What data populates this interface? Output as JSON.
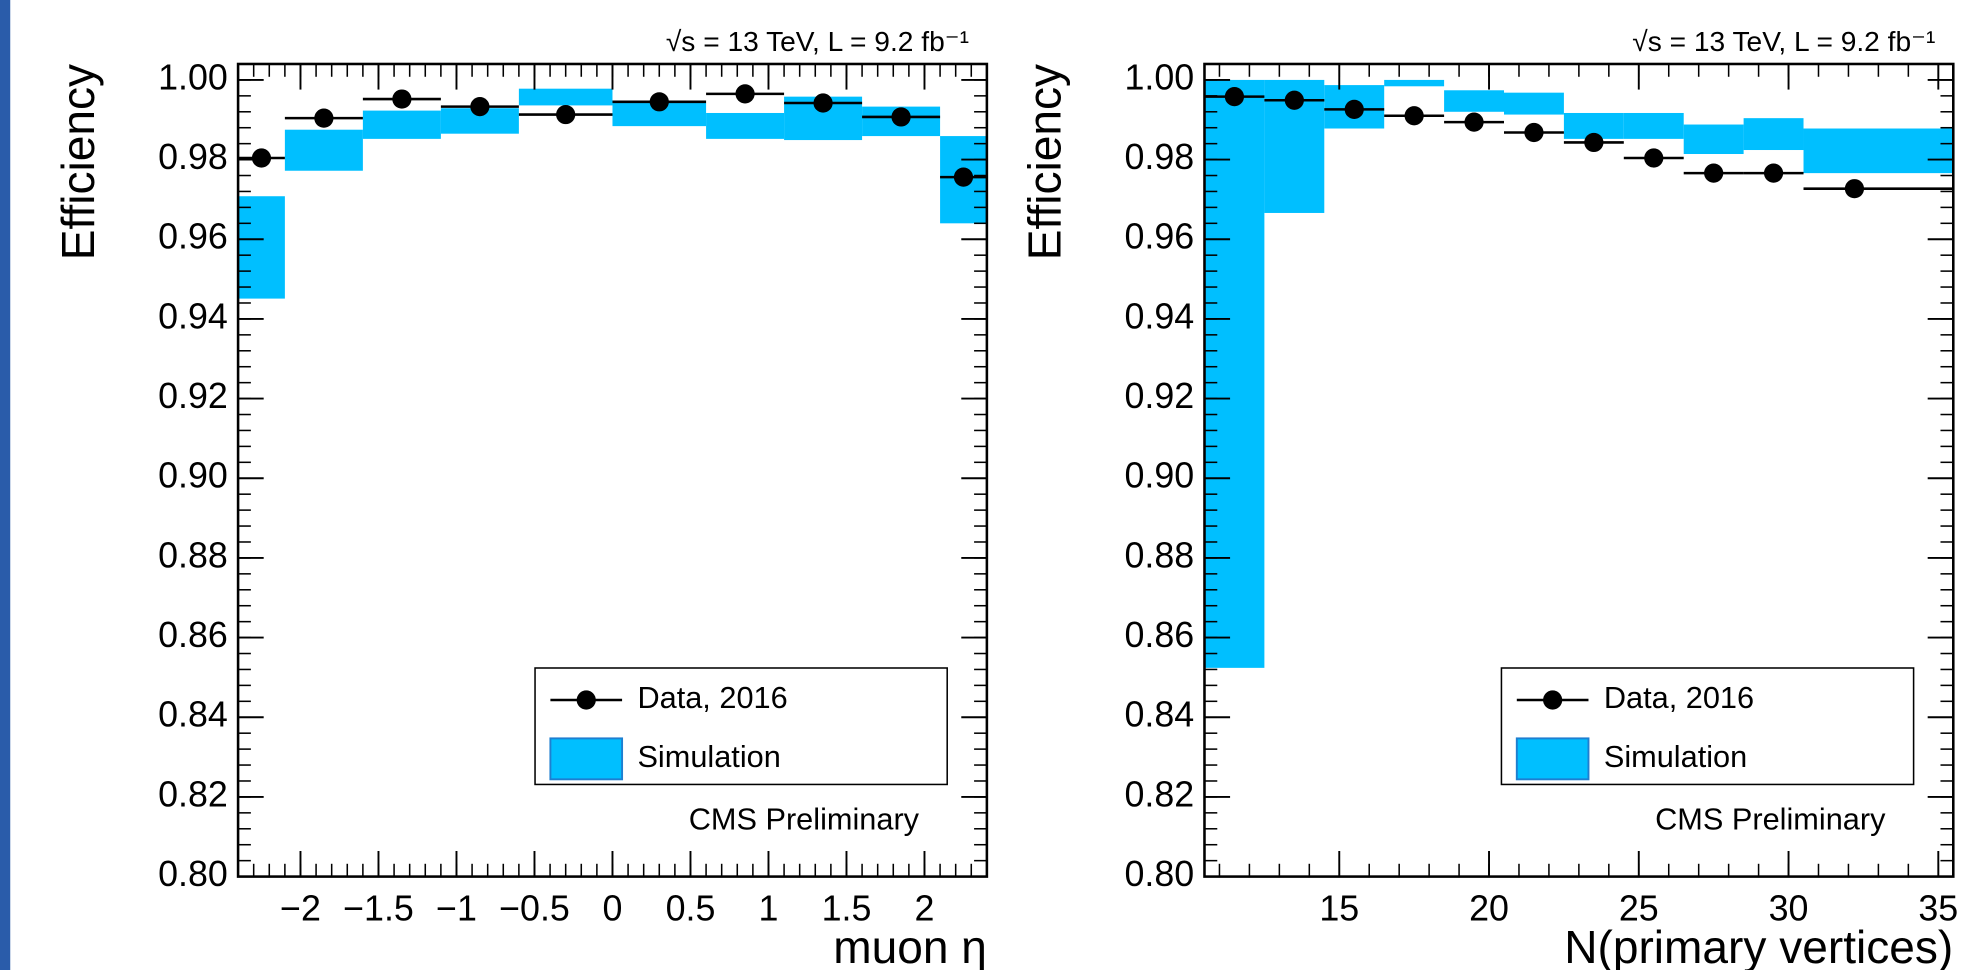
{
  "chart_data": [
    {
      "type": "errorbar",
      "annotation": "√s = 13 TeV, L = 9.2 fb⁻¹",
      "ylabel": "Efficiency",
      "xlabel": "muon η",
      "note": "CMS Preliminary",
      "xlim": [
        -2.4,
        2.4
      ],
      "ylim": [
        0.8,
        1.004
      ],
      "xticks": [
        {
          "value": -2,
          "label": "−2"
        },
        {
          "value": -1.5,
          "label": "−1.5"
        },
        {
          "value": -1,
          "label": "−1"
        },
        {
          "value": -0.5,
          "label": "−0.5"
        },
        0,
        0.5,
        1,
        1.5,
        2
      ],
      "yticks": [
        {
          "value": 0.8,
          "label": "0.80"
        },
        0.82,
        0.84,
        0.86,
        0.88,
        {
          "value": 0.9,
          "label": "0.90"
        },
        0.92,
        0.94,
        0.96,
        0.98,
        {
          "value": 1,
          "label": "1.00"
        }
      ],
      "bins": [
        -2.4,
        -2.1,
        -1.6,
        -1.1,
        -0.6,
        0,
        0.6,
        1.1,
        1.6,
        2.1,
        2.4
      ],
      "series": [
        {
          "name": "Data, 2016",
          "color": "#000000",
          "x": [
            -2.25,
            -1.85,
            -1.35,
            -0.85,
            -0.3,
            0.3,
            0.85,
            1.35,
            1.85,
            2.25
          ],
          "values": [
            0.9804,
            0.9904,
            0.9952,
            0.9933,
            0.9913,
            0.9945,
            0.9965,
            0.9942,
            0.9907,
            0.9756
          ]
        },
        {
          "name": "Simulation",
          "color": "#00bfff",
          "low": [
            0.9451,
            0.9772,
            0.9852,
            0.9865,
            0.9936,
            0.9884,
            0.9852,
            0.9849,
            0.9859,
            0.964
          ],
          "high": [
            0.9708,
            0.9875,
            0.9923,
            0.9929,
            0.9978,
            0.9942,
            0.9917,
            0.9958,
            0.9933,
            0.9859
          ]
        }
      ]
    },
    {
      "type": "errorbar",
      "annotation": "√s = 13 TeV, L = 9.2 fb⁻¹",
      "ylabel": "Efficiency",
      "xlabel": "N(primary vertices)",
      "note": "CMS Preliminary",
      "xlim": [
        10.5,
        35.5
      ],
      "ylim": [
        0.8,
        1.004
      ],
      "xticks": [
        15,
        20,
        25,
        30,
        35
      ],
      "yticks": [
        {
          "value": 0.8,
          "label": "0.80"
        },
        0.82,
        0.84,
        0.86,
        0.88,
        {
          "value": 0.9,
          "label": "0.90"
        },
        0.92,
        0.94,
        0.96,
        0.98,
        {
          "value": 1,
          "label": "1.00"
        }
      ],
      "bins": [
        10.5,
        12.5,
        14.5,
        16.5,
        18.5,
        20.5,
        22.5,
        24.5,
        26.5,
        28.5,
        30.5,
        35.5
      ],
      "series": [
        {
          "name": "Data, 2016",
          "color": "#000000",
          "x": [
            11.5,
            13.5,
            15.5,
            17.5,
            19.5,
            21.5,
            23.5,
            25.5,
            27.5,
            29.5,
            32.2
          ],
          "values": [
            0.9958,
            0.9949,
            0.9926,
            0.991,
            0.9894,
            0.9868,
            0.9843,
            0.9804,
            0.9766,
            0.9766,
            0.9727
          ]
        },
        {
          "name": "Simulation",
          "color": "#00bfff",
          "low": [
            0.8524,
            0.9666,
            0.9878,
            0.9984,
            0.992,
            0.9913,
            0.9852,
            0.9852,
            0.9814,
            0.9824,
            0.9766
          ],
          "high": [
            1.0,
            1.0,
            0.9987,
            1.0,
            0.9974,
            0.9968,
            0.9917,
            0.9917,
            0.9888,
            0.9904,
            0.9878
          ]
        }
      ]
    }
  ]
}
